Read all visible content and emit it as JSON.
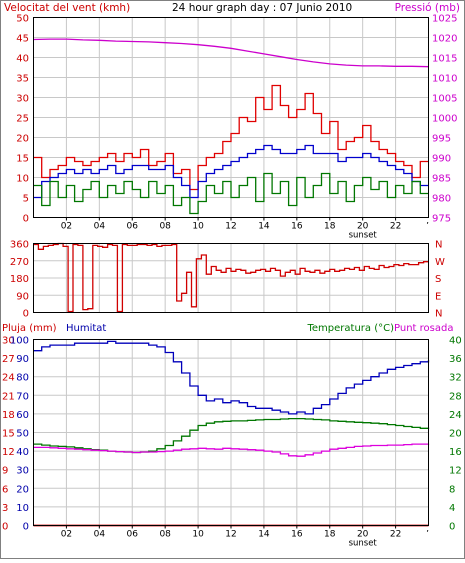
{
  "colors": {
    "wind": "#e00000",
    "avg_wind": "#0000cc",
    "min_wind": "#007700",
    "pressure": "#cc00cc",
    "direction": "#d00000",
    "rain": "#cc0000",
    "humidity": "#0000bb",
    "temperature": "#007700",
    "dewpoint": "#dd00dd",
    "axis_left_top": "#cc0000",
    "axis_right_top": "#cc00cc",
    "axis_humidity": "#0000aa",
    "axis_temp": "#007700",
    "grid": "#c8c8c8"
  },
  "chart_data": [
    {
      "id": "wind_pressure",
      "type": "line",
      "title": "24 hour graph day : 07 Junio 2010",
      "ylabel_left": "Velocitat del vent (kmh)",
      "ylabel_right": "Pressió (mb)",
      "y_left_range": [
        0,
        50
      ],
      "y_left_ticks": [
        0,
        5,
        10,
        15,
        20,
        25,
        30,
        35,
        40,
        45,
        50
      ],
      "y_right_range": [
        975,
        1025
      ],
      "y_right_ticks": [
        975,
        980,
        985,
        990,
        995,
        1000,
        1005,
        1010,
        1015,
        1020,
        1025
      ],
      "x_range": [
        0,
        24
      ],
      "x_ticks": [
        2,
        4,
        6,
        8,
        10,
        12,
        14,
        16,
        18,
        20,
        22
      ],
      "x_tick_labels": [
        "02",
        "04",
        "06",
        "08",
        "10",
        "12",
        "14",
        "16",
        "18",
        "20",
        "22"
      ],
      "grid": true,
      "sunset_label": "sunset",
      "sunset_x": 20,
      "series": [
        {
          "key": "wind_max",
          "color_key": "wind",
          "step": true,
          "x": [
            0.0,
            0.5,
            1.0,
            1.5,
            2.0,
            2.5,
            3.0,
            3.5,
            4.0,
            4.5,
            5.0,
            5.5,
            6.0,
            6.5,
            7.0,
            7.5,
            8.0,
            8.5,
            9.0,
            9.5,
            10.0,
            10.5,
            11.0,
            11.5,
            12.0,
            12.5,
            13.0,
            13.5,
            14.0,
            14.5,
            15.0,
            15.5,
            16.0,
            16.5,
            17.0,
            17.5,
            18.0,
            18.5,
            19.0,
            19.5,
            20.0,
            20.5,
            21.0,
            21.5,
            22.0,
            22.5,
            23.0,
            23.5
          ],
          "y": [
            15,
            10,
            12,
            13,
            15,
            14,
            13,
            14,
            15,
            16,
            14,
            16,
            15,
            17,
            13,
            14,
            16,
            11,
            12,
            7,
            13,
            15,
            16,
            19,
            21,
            25,
            24,
            30,
            27,
            33,
            28,
            25,
            27,
            31,
            26,
            21,
            24,
            17,
            19,
            20,
            23,
            19,
            17,
            16,
            14,
            13,
            10,
            14
          ]
        },
        {
          "key": "wind_avg",
          "color_key": "avg_wind",
          "step": true,
          "x": [
            0.0,
            0.5,
            1.0,
            1.5,
            2.0,
            2.5,
            3.0,
            3.5,
            4.0,
            4.5,
            5.0,
            5.5,
            6.0,
            6.5,
            7.0,
            7.5,
            8.0,
            8.5,
            9.0,
            9.5,
            10.0,
            10.5,
            11.0,
            11.5,
            12.0,
            12.5,
            13.0,
            13.5,
            14.0,
            14.5,
            15.0,
            15.5,
            16.0,
            16.5,
            17.0,
            17.5,
            18.0,
            18.5,
            19.0,
            19.5,
            20.0,
            20.5,
            21.0,
            21.5,
            22.0,
            22.5,
            23.0,
            23.5
          ],
          "y": [
            5,
            9,
            10,
            11,
            12,
            11,
            12,
            11,
            12,
            13,
            11,
            12,
            13,
            13,
            12,
            12,
            13,
            10,
            8,
            5,
            9,
            11,
            12,
            13,
            14,
            15,
            16,
            17,
            18,
            17,
            16,
            16,
            17,
            18,
            16,
            16,
            16,
            14,
            15,
            15,
            16,
            15,
            14,
            13,
            12,
            11,
            9,
            8
          ]
        },
        {
          "key": "wind_min",
          "color_key": "min_wind",
          "step": true,
          "x": [
            0.0,
            0.5,
            1.0,
            1.5,
            2.0,
            2.5,
            3.0,
            3.5,
            4.0,
            4.5,
            5.0,
            5.5,
            6.0,
            6.5,
            7.0,
            7.5,
            8.0,
            8.5,
            9.0,
            9.5,
            10.0,
            10.5,
            11.0,
            11.5,
            12.0,
            12.5,
            13.0,
            13.5,
            14.0,
            14.5,
            15.0,
            15.5,
            16.0,
            16.5,
            17.0,
            17.5,
            18.0,
            18.5,
            19.0,
            19.5,
            20.0,
            20.5,
            21.0,
            21.5,
            22.0,
            22.5,
            23.0,
            23.5
          ],
          "y": [
            8,
            3,
            9,
            5,
            8,
            4,
            7,
            9,
            5,
            8,
            6,
            9,
            7,
            5,
            9,
            6,
            8,
            3,
            5,
            1,
            4,
            8,
            6,
            9,
            5,
            8,
            10,
            4,
            11,
            6,
            9,
            3,
            10,
            5,
            8,
            11,
            6,
            9,
            4,
            8,
            10,
            7,
            9,
            5,
            8,
            6,
            9,
            6
          ]
        },
        {
          "key": "pressure",
          "color_key": "pressure",
          "axis": "right",
          "step": false,
          "x": [
            0,
            1,
            2,
            3,
            4,
            5,
            6,
            7,
            8,
            9,
            10,
            11,
            12,
            13,
            14,
            15,
            16,
            17,
            18,
            19,
            20,
            21,
            22,
            23,
            24
          ],
          "y": [
            1019.5,
            1019.6,
            1019.6,
            1019.4,
            1019.3,
            1019.1,
            1019.0,
            1018.9,
            1018.7,
            1018.5,
            1018.2,
            1017.8,
            1017.3,
            1016.6,
            1015.9,
            1015.2,
            1014.5,
            1013.9,
            1013.4,
            1013.1,
            1012.9,
            1012.9,
            1012.8,
            1012.8,
            1012.7
          ]
        }
      ]
    },
    {
      "id": "direction",
      "type": "line",
      "y_left_range": [
        0,
        360
      ],
      "y_left_ticks": [
        0,
        90,
        180,
        270,
        360
      ],
      "y_right_labels": [
        "N",
        "W",
        "S",
        "E",
        "N"
      ],
      "x_range": [
        0,
        24
      ],
      "grid": true,
      "series": [
        {
          "key": "direction",
          "color_key": "direction",
          "step": true,
          "x": [
            0.0,
            0.3,
            0.6,
            0.9,
            1.2,
            1.5,
            1.8,
            2.1,
            2.4,
            2.7,
            3.0,
            3.3,
            3.6,
            3.9,
            4.2,
            4.5,
            4.8,
            5.1,
            5.4,
            5.7,
            6.0,
            6.3,
            6.6,
            6.9,
            7.2,
            7.5,
            7.8,
            8.1,
            8.4,
            8.7,
            9.0,
            9.3,
            9.6,
            9.9,
            10.2,
            10.5,
            10.8,
            11.1,
            11.4,
            11.7,
            12.0,
            12.3,
            12.6,
            12.9,
            13.2,
            13.5,
            13.8,
            14.1,
            14.4,
            14.7,
            15.0,
            15.3,
            15.6,
            15.9,
            16.2,
            16.5,
            16.8,
            17.1,
            17.4,
            17.7,
            18.0,
            18.3,
            18.6,
            18.9,
            19.2,
            19.5,
            19.8,
            20.1,
            20.4,
            20.7,
            21.0,
            21.3,
            21.6,
            21.9,
            22.2,
            22.5,
            22.8,
            23.1,
            23.4,
            23.7
          ],
          "y": [
            355,
            330,
            345,
            350,
            355,
            360,
            345,
            5,
            355,
            350,
            15,
            20,
            350,
            345,
            340,
            355,
            350,
            5,
            355,
            350,
            350,
            355,
            355,
            350,
            355,
            345,
            350,
            350,
            355,
            60,
            100,
            210,
            30,
            280,
            300,
            200,
            240,
            220,
            210,
            230,
            215,
            225,
            220,
            205,
            210,
            220,
            225,
            215,
            230,
            220,
            190,
            210,
            220,
            200,
            230,
            215,
            210,
            220,
            205,
            215,
            225,
            215,
            220,
            230,
            225,
            235,
            220,
            240,
            230,
            225,
            245,
            235,
            240,
            250,
            245,
            255,
            250,
            250,
            260,
            265
          ]
        }
      ]
    },
    {
      "id": "rain_hum_temp",
      "type": "line",
      "ylabel_left": "Pluja (mm)",
      "ylabel_left2": "Humitat",
      "ylabel_right": "Temperatura (°C)",
      "ylabel_right2": "Punt rosada",
      "y_rain_ticks": [
        0,
        3,
        6,
        9,
        12,
        15,
        18,
        21,
        24,
        27,
        30
      ],
      "y_hum_ticks": [
        0,
        10,
        20,
        30,
        40,
        50,
        60,
        70,
        80,
        90,
        100
      ],
      "y_temp_range": [
        0,
        40
      ],
      "y_temp_ticks": [
        0,
        4,
        8,
        12,
        16,
        20,
        24,
        28,
        32,
        36,
        40
      ],
      "x_range": [
        0,
        24
      ],
      "x_ticks": [
        2,
        4,
        6,
        8,
        10,
        12,
        14,
        16,
        18,
        20,
        22
      ],
      "x_tick_labels": [
        "02",
        "04",
        "06",
        "08",
        "10",
        "12",
        "14",
        "16",
        "18",
        "20",
        "22"
      ],
      "sunset_label": "sunset",
      "sunset_x": 20,
      "grid": true,
      "series": [
        {
          "key": "rain",
          "color_key": "rain",
          "axis": "rain",
          "step": false,
          "x": [
            0,
            24
          ],
          "y": [
            0,
            0
          ]
        },
        {
          "key": "humidity",
          "color_key": "humidity",
          "axis": "hum",
          "step": true,
          "x": [
            0.0,
            0.5,
            1.0,
            1.5,
            2.0,
            2.5,
            3.0,
            3.5,
            4.0,
            4.5,
            5.0,
            5.5,
            6.0,
            6.5,
            7.0,
            7.5,
            8.0,
            8.5,
            9.0,
            9.5,
            10.0,
            10.5,
            11.0,
            11.5,
            12.0,
            12.5,
            13.0,
            13.5,
            14.0,
            14.5,
            15.0,
            15.5,
            16.0,
            16.5,
            17.0,
            17.5,
            18.0,
            18.5,
            19.0,
            19.5,
            20.0,
            20.5,
            21.0,
            21.5,
            22.0,
            22.5,
            23.0,
            23.5,
            24.0
          ],
          "y": [
            94,
            96,
            97,
            97,
            97,
            98,
            98,
            98,
            98,
            99,
            98,
            98,
            98,
            98,
            97,
            96,
            93,
            88,
            82,
            75,
            70,
            67,
            68,
            66,
            67,
            66,
            64,
            63,
            63,
            62,
            61,
            60,
            61,
            60,
            63,
            65,
            68,
            71,
            74,
            76,
            78,
            80,
            82,
            84,
            85,
            86,
            87,
            88,
            89
          ]
        },
        {
          "key": "temperature",
          "color_key": "temperature",
          "axis": "temp",
          "step": true,
          "x": [
            0.0,
            0.5,
            1.0,
            1.5,
            2.0,
            2.5,
            3.0,
            3.5,
            4.0,
            4.5,
            5.0,
            5.5,
            6.0,
            6.5,
            7.0,
            7.5,
            8.0,
            8.5,
            9.0,
            9.5,
            10.0,
            10.5,
            11.0,
            11.5,
            12.0,
            12.5,
            13.0,
            13.5,
            14.0,
            14.5,
            15.0,
            15.5,
            16.0,
            16.5,
            17.0,
            17.5,
            18.0,
            18.5,
            19.0,
            19.5,
            20.0,
            20.5,
            21.0,
            21.5,
            22.0,
            22.5,
            23.0,
            23.5,
            24.0
          ],
          "y": [
            17.5,
            17.3,
            17.1,
            17.0,
            16.9,
            16.7,
            16.5,
            16.3,
            16.2,
            16.0,
            15.9,
            15.8,
            15.7,
            15.8,
            16.0,
            16.5,
            17.2,
            18.2,
            19.2,
            20.5,
            21.5,
            22.0,
            22.3,
            22.4,
            22.5,
            22.5,
            22.6,
            22.7,
            22.8,
            22.8,
            22.9,
            23.0,
            23.0,
            22.9,
            22.8,
            22.7,
            22.5,
            22.4,
            22.3,
            22.2,
            22.1,
            22.0,
            21.9,
            21.7,
            21.5,
            21.3,
            21.1,
            20.9,
            20.8
          ]
        },
        {
          "key": "dewpoint",
          "color_key": "dewpoint",
          "axis": "temp",
          "step": true,
          "x": [
            0.0,
            0.5,
            1.0,
            1.5,
            2.0,
            2.5,
            3.0,
            3.5,
            4.0,
            4.5,
            5.0,
            5.5,
            6.0,
            6.5,
            7.0,
            7.5,
            8.0,
            8.5,
            9.0,
            9.5,
            10.0,
            10.5,
            11.0,
            11.5,
            12.0,
            12.5,
            13.0,
            13.5,
            14.0,
            14.5,
            15.0,
            15.5,
            16.0,
            16.5,
            17.0,
            17.5,
            18.0,
            18.5,
            19.0,
            19.5,
            20.0,
            20.5,
            21.0,
            21.5,
            22.0,
            22.5,
            23.0,
            23.5,
            24.0
          ],
          "y": [
            16.8,
            16.8,
            16.7,
            16.6,
            16.5,
            16.4,
            16.3,
            16.2,
            16.1,
            16.0,
            15.9,
            15.8,
            15.7,
            15.8,
            15.8,
            15.9,
            16.0,
            16.2,
            16.4,
            16.5,
            16.6,
            16.5,
            16.4,
            16.6,
            16.5,
            16.4,
            16.3,
            16.2,
            16.0,
            15.8,
            15.4,
            15.0,
            14.9,
            15.2,
            15.6,
            16.0,
            16.4,
            16.6,
            16.8,
            17.0,
            17.1,
            17.2,
            17.2,
            17.3,
            17.3,
            17.4,
            17.5,
            17.5,
            17.6
          ]
        }
      ]
    }
  ]
}
